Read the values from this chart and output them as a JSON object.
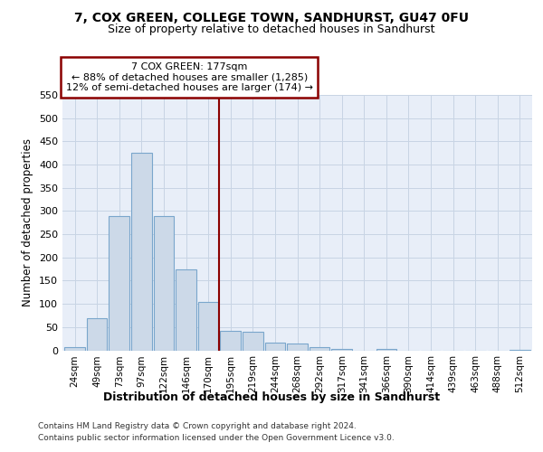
{
  "title": "7, COX GREEN, COLLEGE TOWN, SANDHURST, GU47 0FU",
  "subtitle": "Size of property relative to detached houses in Sandhurst",
  "xlabel": "Distribution of detached houses by size in Sandhurst",
  "ylabel": "Number of detached properties",
  "footer_line1": "Contains HM Land Registry data © Crown copyright and database right 2024.",
  "footer_line2": "Contains public sector information licensed under the Open Government Licence v3.0.",
  "bar_labels": [
    "24sqm",
    "49sqm",
    "73sqm",
    "97sqm",
    "122sqm",
    "146sqm",
    "170sqm",
    "195sqm",
    "219sqm",
    "244sqm",
    "268sqm",
    "292sqm",
    "317sqm",
    "341sqm",
    "366sqm",
    "390sqm",
    "414sqm",
    "439sqm",
    "463sqm",
    "488sqm",
    "512sqm"
  ],
  "bar_values": [
    7,
    70,
    290,
    425,
    290,
    175,
    105,
    42,
    40,
    16,
    15,
    7,
    3,
    0,
    3,
    0,
    0,
    0,
    0,
    0,
    1
  ],
  "bar_color": "#ccd9e8",
  "bar_edge_color": "#7aa6cc",
  "grid_color": "#c8d4e4",
  "background_color": "#e8eef8",
  "vline_pos": 6.5,
  "annotation_line1": "7 COX GREEN: 177sqm",
  "annotation_line2": "← 88% of detached houses are smaller (1,285)",
  "annotation_line3": "12% of semi-detached houses are larger (174) →",
  "annotation_box_facecolor": "white",
  "annotation_border_color": "#8b0000",
  "vline_color": "#8b0000",
  "ylim": [
    0,
    550
  ],
  "yticks": [
    0,
    50,
    100,
    150,
    200,
    250,
    300,
    350,
    400,
    450,
    500,
    550
  ],
  "title_fontsize": 10,
  "subtitle_fontsize": 9,
  "ylabel_fontsize": 8.5,
  "tick_fontsize": 8,
  "xtick_fontsize": 7.5,
  "xlabel_fontsize": 9,
  "footer_fontsize": 6.5,
  "annotation_fontsize": 8
}
